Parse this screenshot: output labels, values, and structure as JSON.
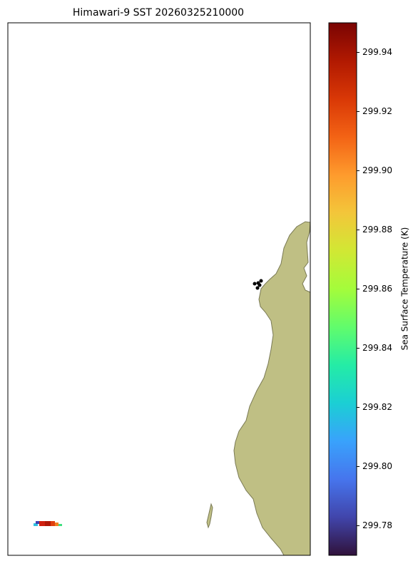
{
  "chart_data": {
    "type": "map",
    "title": "Himawari-9 SST 20260325210000",
    "colorbar": {
      "label": "Sea Surface Temperature (K)",
      "colormap": "turbo",
      "lim": [
        299.77,
        299.95
      ],
      "ticks": [
        299.78,
        {
          "value": 299.8,
          "label": "299.80"
        },
        299.82,
        299.84,
        299.86,
        299.88,
        {
          "value": 299.9,
          "label": "299.90"
        },
        299.92,
        299.94
      ]
    }
  }
}
